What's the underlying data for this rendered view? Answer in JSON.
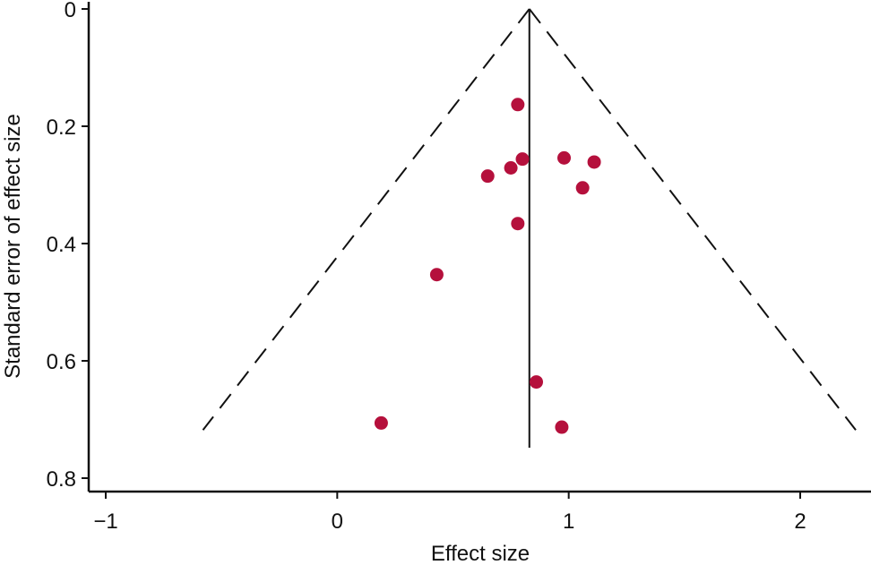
{
  "chart_data": {
    "type": "scatter",
    "title": "",
    "xlabel": "Effect size",
    "ylabel": "Standard error of effect size",
    "xlim": [
      -1.05,
      2.3
    ],
    "ylim": [
      0,
      0.82
    ],
    "y_reversed": true,
    "x_ticks": [
      -1,
      0,
      1,
      2
    ],
    "x_tick_labels": [
      "−1",
      "0",
      "1",
      "2"
    ],
    "y_ticks": [
      0,
      0.2,
      0.4,
      0.6,
      0.8
    ],
    "y_tick_labels": [
      "0",
      "0.2",
      "0.4",
      "0.6",
      "0.8"
    ],
    "grid": false,
    "point_color": "#b5103c",
    "pooled_effect": 0.83,
    "pooled_line_se_range": [
      0,
      0.748
    ],
    "funnel_limits": {
      "apex": [
        0.83,
        0
      ],
      "left_end": [
        -0.58,
        0.718
      ],
      "right_end": [
        2.24,
        0.718
      ]
    },
    "points": [
      {
        "x": 0.78,
        "y": 0.163
      },
      {
        "x": 0.8,
        "y": 0.256
      },
      {
        "x": 0.75,
        "y": 0.271
      },
      {
        "x": 0.65,
        "y": 0.285
      },
      {
        "x": 0.98,
        "y": 0.254
      },
      {
        "x": 1.11,
        "y": 0.261
      },
      {
        "x": 1.06,
        "y": 0.305
      },
      {
        "x": 0.78,
        "y": 0.366
      },
      {
        "x": 0.43,
        "y": 0.453
      },
      {
        "x": 0.86,
        "y": 0.636
      },
      {
        "x": 0.19,
        "y": 0.706
      },
      {
        "x": 0.97,
        "y": 0.713
      }
    ]
  }
}
